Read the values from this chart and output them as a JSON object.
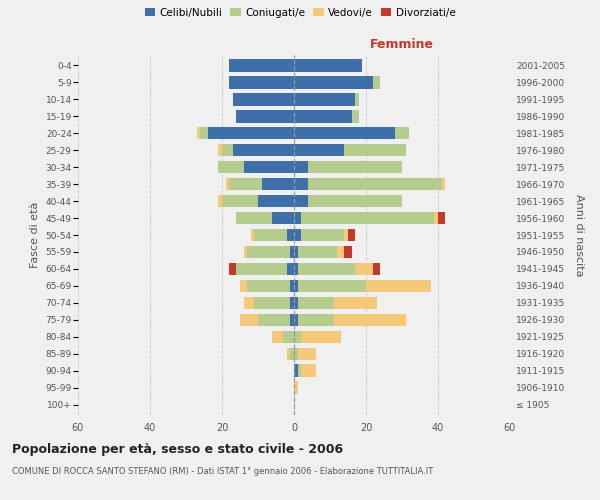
{
  "age_groups": [
    "100+",
    "95-99",
    "90-94",
    "85-89",
    "80-84",
    "75-79",
    "70-74",
    "65-69",
    "60-64",
    "55-59",
    "50-54",
    "45-49",
    "40-44",
    "35-39",
    "30-34",
    "25-29",
    "20-24",
    "15-19",
    "10-14",
    "5-9",
    "0-4"
  ],
  "birth_years": [
    "≤ 1905",
    "1906-1910",
    "1911-1915",
    "1916-1920",
    "1921-1925",
    "1926-1930",
    "1931-1935",
    "1936-1940",
    "1941-1945",
    "1946-1950",
    "1951-1955",
    "1956-1960",
    "1961-1965",
    "1966-1970",
    "1971-1975",
    "1976-1980",
    "1981-1985",
    "1986-1990",
    "1991-1995",
    "1996-2000",
    "2001-2005"
  ],
  "maschi": {
    "celibi": [
      0,
      0,
      0,
      0,
      0,
      1,
      1,
      1,
      2,
      1,
      2,
      6,
      10,
      9,
      14,
      17,
      24,
      16,
      17,
      18,
      18
    ],
    "coniugati": [
      0,
      0,
      0,
      1,
      3,
      9,
      10,
      12,
      14,
      12,
      9,
      10,
      10,
      9,
      7,
      3,
      2,
      0,
      0,
      0,
      0
    ],
    "vedovi": [
      0,
      0,
      0,
      1,
      3,
      5,
      3,
      2,
      0,
      1,
      1,
      0,
      1,
      1,
      0,
      1,
      1,
      0,
      0,
      0,
      0
    ],
    "divorziati": [
      0,
      0,
      0,
      0,
      0,
      0,
      0,
      0,
      2,
      0,
      0,
      0,
      0,
      0,
      0,
      0,
      0,
      0,
      0,
      0,
      0
    ]
  },
  "femmine": {
    "nubili": [
      0,
      0,
      1,
      0,
      0,
      1,
      1,
      1,
      1,
      1,
      2,
      2,
      4,
      4,
      4,
      14,
      28,
      16,
      17,
      22,
      19
    ],
    "coniugate": [
      0,
      0,
      1,
      1,
      2,
      10,
      10,
      19,
      16,
      11,
      12,
      37,
      26,
      37,
      26,
      17,
      4,
      2,
      1,
      2,
      0
    ],
    "vedove": [
      0,
      1,
      4,
      5,
      11,
      20,
      12,
      18,
      5,
      2,
      1,
      1,
      0,
      1,
      0,
      0,
      0,
      0,
      0,
      0,
      0
    ],
    "divorziate": [
      0,
      0,
      0,
      0,
      0,
      0,
      0,
      0,
      2,
      2,
      2,
      2,
      0,
      0,
      0,
      0,
      0,
      0,
      0,
      0,
      0
    ]
  },
  "colors": {
    "celibi_nubili": "#3e6fa8",
    "coniugati": "#b5cc8e",
    "vedovi": "#f5c97a",
    "divorziati": "#c0392b"
  },
  "xlim": 60,
  "title": "Popolazione per età, sesso e stato civile - 2006",
  "subtitle": "COMUNE DI ROCCA SANTO STEFANO (RM) - Dati ISTAT 1° gennaio 2006 - Elaborazione TUTTITALIA.IT",
  "ylabel": "Fasce di età",
  "ylabel_right": "Anni di nascita",
  "legend_labels": [
    "Celibi/Nubili",
    "Coniugati/e",
    "Vedovi/e",
    "Divorziati/e"
  ],
  "background_color": "#f0f0f0"
}
